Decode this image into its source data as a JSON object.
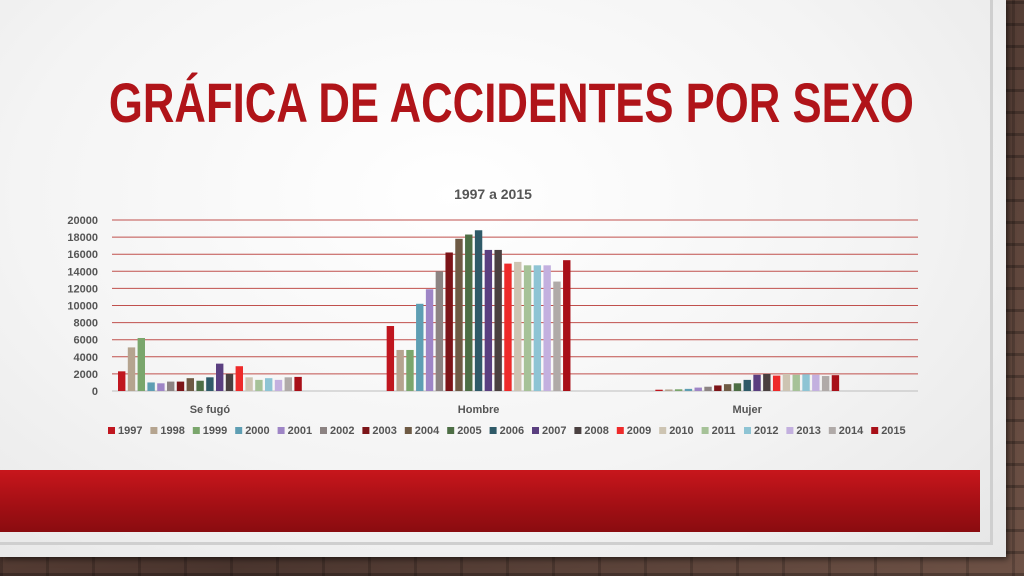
{
  "slide": {
    "title": "GRÁFICA DE ACCIDENTES POR SEXO"
  },
  "colors": {
    "title": "#b01419",
    "band": "#b5131a",
    "gridline": "#c0504d"
  },
  "chart_data": {
    "type": "bar",
    "title": "1997 a 2015",
    "xlabel": "",
    "ylabel": "",
    "ylim": [
      0,
      20000
    ],
    "yticks": [
      0,
      2000,
      4000,
      6000,
      8000,
      10000,
      12000,
      14000,
      16000,
      18000,
      20000
    ],
    "grid": true,
    "legend_position": "bottom",
    "categories": [
      "Se fugó",
      "Hombre",
      "Mujer"
    ],
    "series": [
      {
        "name": "1997",
        "color": "#c0161f",
        "values": [
          2300,
          7600,
          150
        ]
      },
      {
        "name": "1998",
        "color": "#b5a48f",
        "values": [
          5100,
          4800,
          180
        ]
      },
      {
        "name": "1999",
        "color": "#7aa66c",
        "values": [
          6200,
          4800,
          200
        ]
      },
      {
        "name": "2000",
        "color": "#5e9eb3",
        "values": [
          1000,
          10200,
          250
        ]
      },
      {
        "name": "2001",
        "color": "#9e85c6",
        "values": [
          900,
          11900,
          400
        ]
      },
      {
        "name": "2002",
        "color": "#8c8382",
        "values": [
          1100,
          14000,
          500
        ]
      },
      {
        "name": "2003",
        "color": "#7c1418",
        "values": [
          1100,
          16200,
          650
        ]
      },
      {
        "name": "2004",
        "color": "#6e5a44",
        "values": [
          1500,
          17800,
          800
        ]
      },
      {
        "name": "2005",
        "color": "#4d6e45",
        "values": [
          1200,
          18300,
          900
        ]
      },
      {
        "name": "2006",
        "color": "#2f5a68",
        "values": [
          1600,
          18800,
          1300
        ]
      },
      {
        "name": "2007",
        "color": "#5a3f80",
        "values": [
          3200,
          16500,
          1900
        ]
      },
      {
        "name": "2008",
        "color": "#4a4040",
        "values": [
          2000,
          16500,
          2000
        ]
      },
      {
        "name": "2009",
        "color": "#ee2a2a",
        "values": [
          2900,
          14900,
          1800
        ]
      },
      {
        "name": "2010",
        "color": "#cdc4b2",
        "values": [
          1600,
          15100,
          2000
        ]
      },
      {
        "name": "2011",
        "color": "#a6c298",
        "values": [
          1300,
          14700,
          1900
        ]
      },
      {
        "name": "2012",
        "color": "#8ec4d4",
        "values": [
          1500,
          14700,
          1950
        ]
      },
      {
        "name": "2013",
        "color": "#c3b0df",
        "values": [
          1300,
          14700,
          1900
        ]
      },
      {
        "name": "2014",
        "color": "#b0aaa8",
        "values": [
          1600,
          12800,
          1750
        ]
      },
      {
        "name": "2015",
        "color": "#a80f18",
        "values": [
          1650,
          15300,
          1850
        ]
      }
    ]
  }
}
